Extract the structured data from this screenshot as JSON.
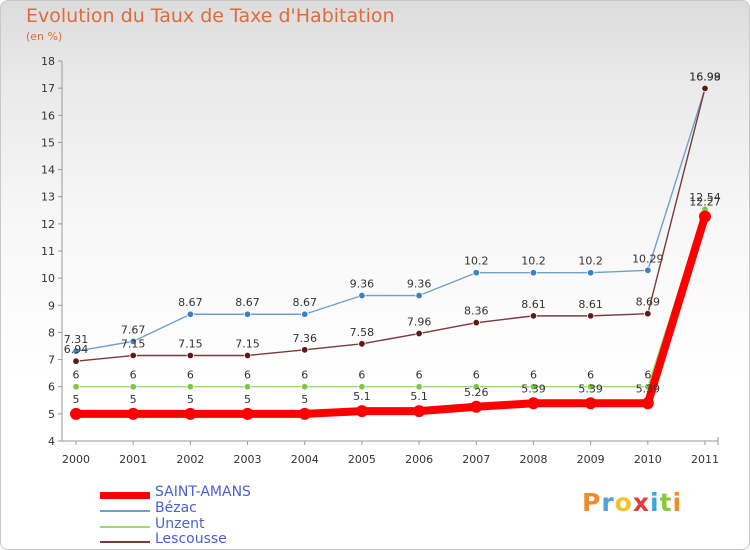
{
  "title": "Evolution du Taux de Taxe d'Habitation",
  "unit_label": "(en %)",
  "brand": {
    "logo_letters": [
      "P",
      "r",
      "o",
      "x",
      "i",
      "t",
      "i"
    ],
    "logo_colors": [
      "#f28b2c",
      "#4ea1dd",
      "#f2c230",
      "#e23b3b",
      "#3aa7dd",
      "#8cc63f",
      "#f28b2c"
    ]
  },
  "chart_data": {
    "type": "line",
    "x": [
      "2000",
      "2001",
      "2002",
      "2003",
      "2004",
      "2005",
      "2006",
      "2007",
      "2008",
      "2009",
      "2010",
      "2011"
    ],
    "ylim": [
      4,
      18
    ],
    "yticks": [
      4,
      5,
      6,
      7,
      8,
      9,
      10,
      11,
      12,
      13,
      14,
      15,
      16,
      17,
      18
    ],
    "grid": false,
    "legend": "bottom-left",
    "series": [
      {
        "name": "Bézac",
        "color": "#6fa0cd",
        "marker": "#3b82c4",
        "values": [
          7.31,
          7.67,
          8.67,
          8.67,
          8.67,
          9.36,
          9.36,
          10.2,
          10.2,
          10.2,
          10.29,
          16.98
        ],
        "labels": [
          "7.31",
          "7.67",
          "8.67",
          "8.67",
          "8.67",
          "9.36",
          "9.36",
          "10.2",
          "10.2",
          "10.2",
          "10.29",
          "16.98"
        ]
      },
      {
        "name": "Lescousse",
        "color": "#7a3a3a",
        "marker": "#5e1a1a",
        "values": [
          6.94,
          7.15,
          7.15,
          7.15,
          7.36,
          7.58,
          7.96,
          8.36,
          8.61,
          8.61,
          8.69,
          16.99
        ],
        "labels": [
          "6.94",
          "7.15",
          "7.15",
          "7.15",
          "7.36",
          "7.58",
          "7.96",
          "8.36",
          "8.61",
          "8.61",
          "8.69",
          "16.99"
        ]
      },
      {
        "name": "Unzent",
        "color": "#9ddc6a",
        "marker": "#7cc940",
        "values": [
          6,
          6,
          6,
          6,
          6,
          6,
          6,
          6,
          6,
          6,
          6,
          12.54
        ],
        "labels": [
          "6",
          "6",
          "6",
          "6",
          "6",
          "6",
          "6",
          "6",
          "6",
          "6",
          "6",
          "12.54"
        ]
      },
      {
        "name": "SAINT-AMANS",
        "color": "#ff0000",
        "marker": "#ff0000",
        "values": [
          5,
          5,
          5,
          5,
          5,
          5.1,
          5.1,
          5.26,
          5.39,
          5.39,
          5.39,
          12.27
        ],
        "labels": [
          "5",
          "5",
          "5",
          "5",
          "5",
          "5.1",
          "5.1",
          "5.26",
          "5.39",
          "5.39",
          "5.39",
          "12.27"
        ]
      }
    ],
    "legend_order": [
      "SAINT-AMANS",
      "Bézac",
      "Unzent",
      "Lescousse"
    ]
  }
}
